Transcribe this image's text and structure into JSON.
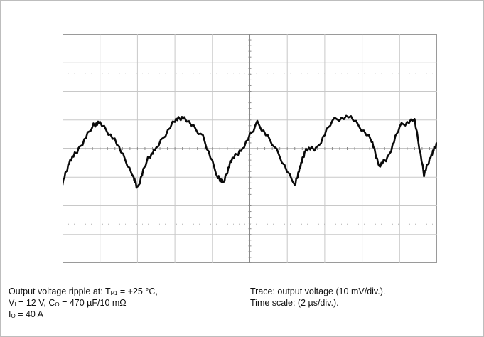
{
  "chart_data": {
    "type": "line",
    "x_divisions": 10,
    "y_divisions": 8,
    "x_unit": "µs",
    "x_per_div": 2,
    "y_unit": "mV",
    "y_per_div": 10,
    "grid": true,
    "channel_marker": "1",
    "series": [
      {
        "x": [
          0,
          0.4,
          0.9,
          1.6,
          2.0,
          2.9,
          3.8,
          4.0,
          4.5,
          5.0,
          6.0,
          6.5,
          7.5,
          8.3,
          8.6,
          9.0,
          9.6,
          10.4,
          11.3,
          12.4,
          12.7,
          13.0,
          13.6,
          14.4,
          15.4,
          16.5,
          16.9,
          17.4,
          18.0,
          18.8,
          19.3,
          19.7,
          20.0
        ],
        "y": [
          -12,
          -4,
          0,
          8,
          9,
          2,
          -10,
          -14,
          -4,
          0,
          10,
          11,
          4,
          -10,
          -12,
          -4,
          0,
          9,
          1,
          -13,
          -6,
          0,
          0,
          10,
          11,
          3,
          -6,
          -3,
          8,
          10,
          -9,
          -2,
          2
        ]
      }
    ]
  },
  "caption": {
    "left": {
      "line1_prefix": "Output voltage ripple at: T",
      "line1_sub": "P1",
      "line1_suffix": " = +25 °C,",
      "line2_a": "V",
      "line2_a_sub": "I",
      "line2_b": " = 12 V, C",
      "line2_b_sub": "O",
      "line2_c": " = 470 µF/10 mΩ",
      "line3_a": "I",
      "line3_a_sub": "O",
      "line3_b": " = 40 A"
    },
    "right": {
      "line1": "Trace: output voltage (10 mV/div.).",
      "line2": "Time scale: (2 µs/div.)."
    }
  }
}
